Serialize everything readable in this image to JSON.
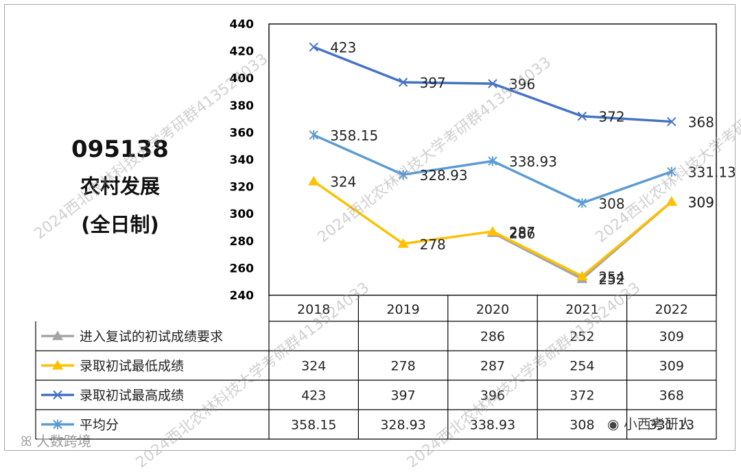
{
  "title": {
    "code": "095138",
    "name": "农村发展",
    "mode": "(全日制)"
  },
  "chart_data": {
    "type": "line",
    "categories": [
      "2018",
      "2019",
      "2020",
      "2021",
      "2022"
    ],
    "ylim": [
      240,
      440
    ],
    "yticks": [
      240,
      260,
      280,
      300,
      320,
      340,
      360,
      380,
      400,
      420,
      440
    ],
    "grid": false,
    "series": [
      {
        "name": "进入复试的初试成绩要求",
        "color": "#a5a5a5",
        "marker": "triangle",
        "values": [
          null,
          null,
          286,
          252,
          309
        ],
        "labels": [
          "",
          "",
          "286",
          "252",
          "309"
        ]
      },
      {
        "name": "录取初试最低成绩",
        "color": "#ffc000",
        "marker": "triangle",
        "values": [
          324,
          278,
          287,
          254,
          309
        ],
        "labels": [
          "324",
          "278",
          "287",
          "254",
          "309"
        ]
      },
      {
        "name": "录取初试最高成绩",
        "color": "#4472c4",
        "marker": "x",
        "values": [
          423,
          397,
          396,
          372,
          368
        ],
        "labels": [
          "423",
          "397",
          "396",
          "372",
          "368"
        ]
      },
      {
        "name": "平均分",
        "color": "#5b9bd5",
        "marker": "asterisk",
        "values": [
          358.15,
          328.93,
          338.93,
          308,
          331.13
        ],
        "labels": [
          "358.15",
          "328.93",
          "338.93",
          "308",
          "331.13"
        ]
      }
    ]
  },
  "watermarks": [
    "2024西北农林科技大学考研群413524033"
  ],
  "branding": {
    "left": "大数跨境",
    "right": "小西考研人"
  },
  "colors": {
    "axis": "#000000",
    "text": "#222222"
  }
}
